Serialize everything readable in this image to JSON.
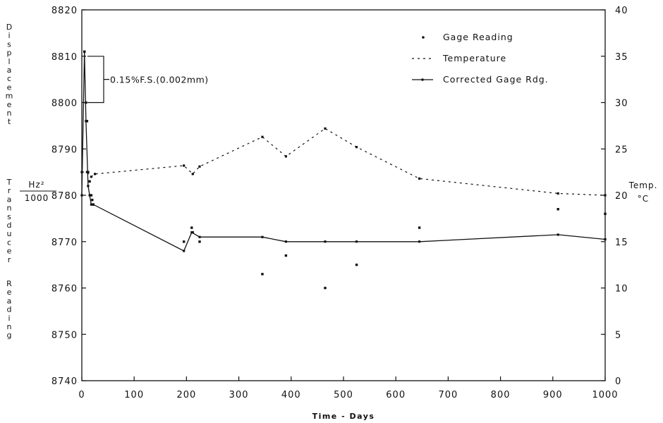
{
  "chart_data": {
    "type": "line",
    "xlabel": "Time - Days",
    "x_ticks": [
      "0",
      "100",
      "200",
      "300",
      "400",
      "500",
      "600",
      "700",
      "800",
      "900",
      "1000"
    ],
    "xlim": [
      0,
      1000
    ],
    "ylabel": "Displacement Transducer Reading",
    "y_unit_numerator": "Hz²",
    "y_unit_denominator": "1000",
    "ylim": [
      8740,
      8820
    ],
    "y_ticks": [
      "8740",
      "8750",
      "8760",
      "8770",
      "8780",
      "8790",
      "8800",
      "8810",
      "8820"
    ],
    "y2label": "Temp.",
    "y2unit": "°C",
    "y2lim": [
      0,
      40
    ],
    "y2_ticks": [
      "0",
      "5",
      "10",
      "15",
      "20",
      "25",
      "30",
      "35",
      "40"
    ],
    "grid": false,
    "legend_position": "top-right",
    "series": [
      {
        "name": "Gage Reading",
        "style": "markers",
        "axis": "left",
        "x": [
          5,
          8,
          10,
          12,
          15,
          18,
          20,
          22,
          195,
          210,
          212,
          225,
          345,
          390,
          465,
          525,
          645,
          910,
          1000
        ],
        "y": [
          8811,
          8800,
          8796,
          8785,
          8783,
          8780,
          8779,
          8778,
          8770,
          8773,
          8772,
          8770,
          8763,
          8767,
          8760,
          8765,
          8773,
          8777,
          8776
        ]
      },
      {
        "name": "Temperature",
        "style": "dashed",
        "axis": "right",
        "x": [
          0,
          10,
          18,
          25,
          195,
          212,
          225,
          345,
          390,
          465,
          525,
          645,
          910,
          1000
        ],
        "y": [
          22.5,
          22.5,
          22,
          22.3,
          23.2,
          22.3,
          23.1,
          26.3,
          24.2,
          27.2,
          25.2,
          21.8,
          20.2,
          20
        ]
      },
      {
        "name": "Corrected Gage Rdg.",
        "style": "solid",
        "axis": "left",
        "x": [
          0,
          5,
          8,
          12,
          15,
          18,
          22,
          195,
          210,
          225,
          345,
          390,
          465,
          525,
          645,
          910,
          1000
        ],
        "y": [
          8780,
          8811,
          8796,
          8782,
          8780,
          8778,
          8778,
          8768,
          8772,
          8771,
          8771,
          8770,
          8770,
          8770,
          8770,
          8771.5,
          8770.5
        ]
      }
    ],
    "annotation": {
      "text": "0.15%F.S.(0.002mm)",
      "y_from": 8800,
      "y_to": 8810
    }
  }
}
